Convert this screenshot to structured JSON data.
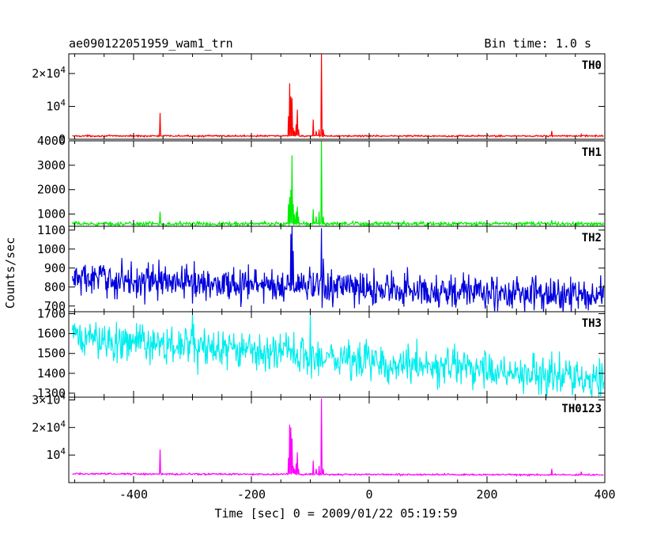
{
  "header": {
    "object_name": "ae090122051959_wam1_trn",
    "bin_time": "Bin time: 1.0 s"
  },
  "chart_data": {
    "type": "line",
    "x_axis": {
      "label": "Time [sec] 0 = 2009/01/22 05:19:59",
      "range": [
        -510,
        400
      ],
      "ticks": [
        -400,
        -200,
        0,
        200,
        400
      ]
    },
    "y_axis": {
      "label": "Counts/sec"
    },
    "panels": [
      {
        "name": "TH0",
        "color": "#ff0000",
        "ylim": [
          0,
          26000
        ],
        "yticks": [
          {
            "v": 0,
            "label": "0"
          },
          {
            "v": 10000,
            "label": "10^4"
          },
          {
            "v": 20000,
            "label": "2×10^4"
          }
        ],
        "baseline": 1000,
        "noise": 120,
        "trend": 0,
        "spikes": [
          [
            -355,
            8000
          ],
          [
            -137,
            7000
          ],
          [
            -135,
            17000
          ],
          [
            -133,
            13000
          ],
          [
            -131,
            12500
          ],
          [
            -129,
            3500
          ],
          [
            -127,
            2500
          ],
          [
            -124,
            4500
          ],
          [
            -122,
            9000
          ],
          [
            -120,
            3000
          ],
          [
            -95,
            6000
          ],
          [
            -90,
            2500
          ],
          [
            -85,
            3000
          ],
          [
            -81,
            26000
          ],
          [
            -78,
            3000
          ],
          [
            310,
            2500
          ],
          [
            360,
            1500
          ]
        ]
      },
      {
        "name": "TH1",
        "color": "#00ee00",
        "ylim": [
          500,
          4000
        ],
        "yticks": [
          {
            "v": 1000,
            "label": "1000"
          },
          {
            "v": 2000,
            "label": "2000"
          },
          {
            "v": 3000,
            "label": "3000"
          },
          {
            "v": 4000,
            "label": "4000"
          }
        ],
        "baseline": 600,
        "noise": 40,
        "trend": 0,
        "spikes": [
          [
            -355,
            1100
          ],
          [
            -137,
            1400
          ],
          [
            -135,
            1700
          ],
          [
            -133,
            2000
          ],
          [
            -131,
            3400
          ],
          [
            -129,
            1400
          ],
          [
            -127,
            1000
          ],
          [
            -124,
            1100
          ],
          [
            -122,
            1300
          ],
          [
            -120,
            900
          ],
          [
            -95,
            1200
          ],
          [
            -90,
            900
          ],
          [
            -85,
            1100
          ],
          [
            -81,
            4000
          ],
          [
            -78,
            900
          ],
          [
            310,
            750
          ]
        ]
      },
      {
        "name": "TH2",
        "color": "#0000dd",
        "ylim": [
          670,
          1120
        ],
        "yticks": [
          {
            "v": 700,
            "label": "700"
          },
          {
            "v": 800,
            "label": "800"
          },
          {
            "v": 900,
            "label": "900"
          },
          {
            "v": 1000,
            "label": "1000"
          },
          {
            "v": 1100,
            "label": "1100"
          }
        ],
        "baseline": 845,
        "noise": 45,
        "trend": -95,
        "spikes": [
          [
            -133,
            1080
          ],
          [
            -131,
            1120
          ],
          [
            -129,
            990
          ],
          [
            -81,
            1110
          ],
          [
            -78,
            950
          ]
        ]
      },
      {
        "name": "TH3",
        "color": "#00eeee",
        "ylim": [
          1280,
          1710
        ],
        "yticks": [
          {
            "v": 1300,
            "label": "1300"
          },
          {
            "v": 1400,
            "label": "1400"
          },
          {
            "v": 1500,
            "label": "1500"
          },
          {
            "v": 1600,
            "label": "1600"
          },
          {
            "v": 1700,
            "label": "1700"
          }
        ],
        "baseline": 1580,
        "noise": 48,
        "trend": -210,
        "spikes": [
          [
            -100,
            1700
          ],
          [
            -300,
            1700
          ]
        ]
      },
      {
        "name": "TH0123",
        "color": "#ff00ff",
        "ylim": [
          0,
          31000
        ],
        "yticks": [
          {
            "v": 10000,
            "label": "10^4"
          },
          {
            "v": 20000,
            "label": "2×10^4"
          },
          {
            "v": 30000,
            "label": "3×10^4"
          }
        ],
        "baseline": 3200,
        "noise": 150,
        "trend": -400,
        "spikes": [
          [
            -355,
            12000
          ],
          [
            -137,
            9000
          ],
          [
            -135,
            21000
          ],
          [
            -133,
            20000
          ],
          [
            -131,
            16000
          ],
          [
            -129,
            6000
          ],
          [
            -127,
            5000
          ],
          [
            -124,
            7000
          ],
          [
            -122,
            11000
          ],
          [
            -120,
            5000
          ],
          [
            -95,
            8000
          ],
          [
            -90,
            5000
          ],
          [
            -85,
            6000
          ],
          [
            -81,
            30500
          ],
          [
            -78,
            5000
          ],
          [
            310,
            5000
          ],
          [
            360,
            4000
          ]
        ]
      }
    ]
  }
}
